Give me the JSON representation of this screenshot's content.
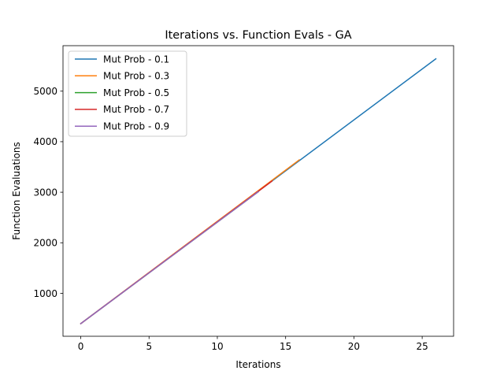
{
  "chart_data": {
    "type": "line",
    "title": "Iterations vs. Function Evals - GA",
    "xlabel": "Iterations",
    "ylabel": "Function Evaluations",
    "xlim": [
      -1.3,
      27.3
    ],
    "ylim": [
      150,
      5900
    ],
    "xticks": [
      0,
      5,
      10,
      15,
      20,
      25
    ],
    "yticks": [
      1000,
      2000,
      3000,
      4000,
      5000
    ],
    "grid": false,
    "legend_position": "top-left",
    "series": [
      {
        "name": "Mut Prob - 0.1",
        "color": "#1f77b4",
        "x_start": 0,
        "x_end": 26,
        "y_start": 400,
        "y_end": 5640
      },
      {
        "name": "Mut Prob - 0.3",
        "color": "#ff7f0e",
        "x_start": 0,
        "x_end": 16,
        "y_start": 400,
        "y_end": 3640
      },
      {
        "name": "Mut Prob - 0.5",
        "color": "#2ca02c",
        "x_start": 0,
        "x_end": 13,
        "y_start": 400,
        "y_end": 3010
      },
      {
        "name": "Mut Prob - 0.7",
        "color": "#d62728",
        "x_start": 0,
        "x_end": 14,
        "y_start": 400,
        "y_end": 3220
      },
      {
        "name": "Mut Prob - 0.9",
        "color": "#9467bd",
        "x_start": 0,
        "x_end": 13,
        "y_start": 400,
        "y_end": 3010
      }
    ]
  }
}
